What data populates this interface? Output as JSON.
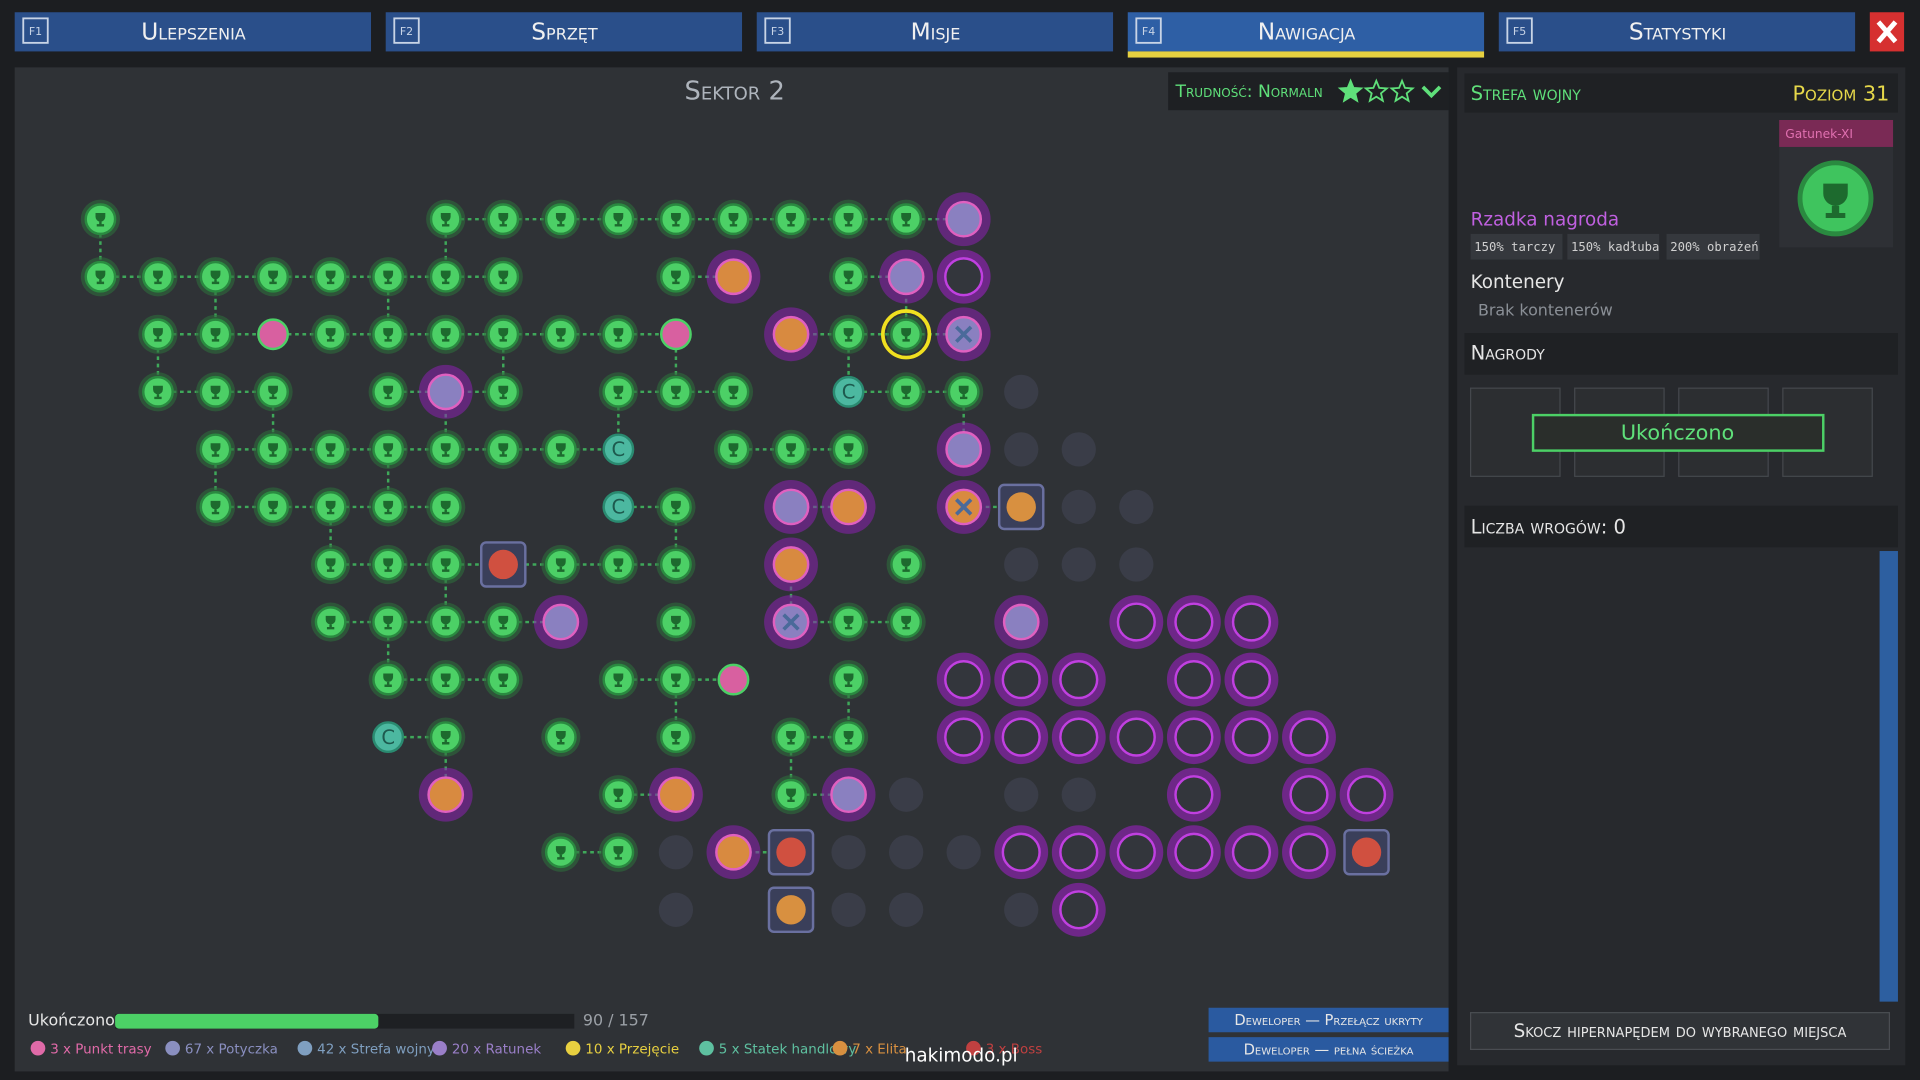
{
  "tabs": [
    {
      "key": "F1",
      "label": "Ulepszenia"
    },
    {
      "key": "F2",
      "label": "Sprzęt"
    },
    {
      "key": "F3",
      "label": "Misje"
    },
    {
      "key": "F4",
      "label": "Nawigacja"
    },
    {
      "key": "F5",
      "label": "Statystyki"
    }
  ],
  "map": {
    "title": "Sektor 2",
    "difficulty": "Trudność: Normaln",
    "stars": 1,
    "stars_max": 3
  },
  "panel": {
    "zone": "Strefa wojny",
    "level": "Poziom 31",
    "species": "Gatunek-XI",
    "reward_title": "Rzadka nagroda",
    "bonuses": [
      "150% tarczy",
      "150% kadłuba",
      "200% obrażeń"
    ],
    "containers_title": "Kontenery",
    "containers_empty": "Brak kontenerów",
    "rewards_title": "Nagrody",
    "rewards_status": "Ukończono",
    "enemies": "Liczba wrogów: 0",
    "jump": "Skocz hipernapędem do wybranego miejsca"
  },
  "progress": {
    "label": "Ukończono",
    "text": "90 / 157",
    "value": 90,
    "max": 157
  },
  "legend": [
    {
      "text": "3 x Punkt trasy",
      "color": "#e06aa8"
    },
    {
      "text": "67 x Potyczka",
      "color": "#8a8fc0"
    },
    {
      "text": "42 x Strefa wojny",
      "color": "#7f9fc0"
    },
    {
      "text": "20 x Ratunek",
      "color": "#9a7fc8"
    },
    {
      "text": "10 x Przejęcie",
      "color": "#e8d040"
    },
    {
      "text": "5 x Statek handlowy",
      "color": "#5ec0a0"
    },
    {
      "text": "7 x Elita",
      "color": "#d89040"
    },
    {
      "text": "3 x Boss",
      "color": "#c04040"
    }
  ],
  "dev_buttons": [
    "Deweloper — Przełącz ukryty",
    "Deweloper — pełna ścieżka"
  ],
  "watermark": "hakimodo.pl"
}
